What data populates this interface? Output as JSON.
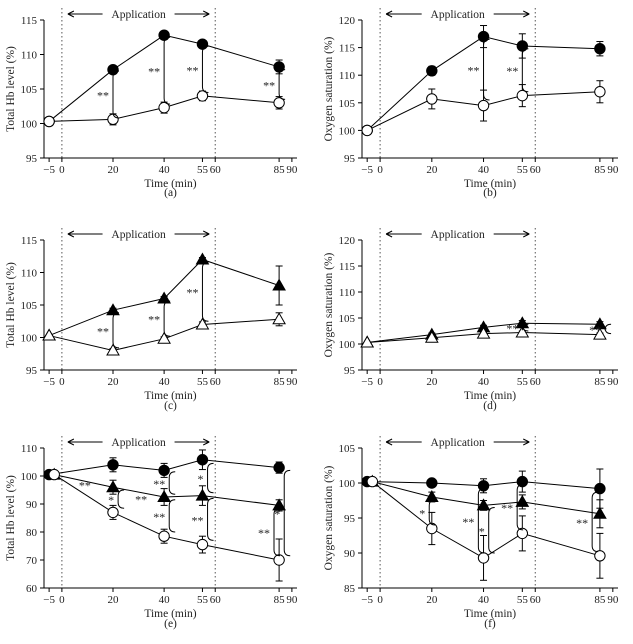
{
  "figure": {
    "application_label": "Application",
    "time_label": "Time (min)",
    "sig_double": "**",
    "sig_single": "*"
  },
  "chart_data": [
    {
      "id": "a",
      "panel_label": "(a)",
      "type": "line",
      "ylabel": "Total Hb level (%)",
      "xlabel": "Time (min)",
      "ylim": [
        95,
        115
      ],
      "yticks": [
        95,
        100,
        105,
        110,
        115
      ],
      "xticks": [
        -5,
        0,
        20,
        40,
        55,
        60,
        85,
        90
      ],
      "application": [
        0,
        60
      ],
      "series": [
        {
          "name": "filled-circle",
          "marker": "circle",
          "fill": "#000",
          "x": [
            -5,
            20,
            40,
            55,
            85
          ],
          "y": [
            100.3,
            107.8,
            112.8,
            111.5,
            108.2
          ],
          "err": [
            0,
            0.5,
            0.6,
            0.4,
            1.0
          ]
        },
        {
          "name": "open-circle",
          "marker": "circle",
          "fill": "#fff",
          "x": [
            -5,
            20,
            40,
            55,
            85
          ],
          "y": [
            100.3,
            100.6,
            102.3,
            104.0,
            103.0
          ],
          "err": [
            0,
            0.8,
            0.8,
            0.7,
            0.9
          ]
        }
      ],
      "brackets": [
        {
          "x": 20,
          "y1": 100.8,
          "y2": 107.6,
          "label": "**"
        },
        {
          "x": 40,
          "y1": 102.8,
          "y2": 112.5,
          "label": "**"
        },
        {
          "x": 55,
          "y1": 104.5,
          "y2": 111.2,
          "label": "**"
        },
        {
          "x": 85,
          "y1": 103.5,
          "y2": 107.8,
          "label": "**"
        }
      ]
    },
    {
      "id": "b",
      "panel_label": "(b)",
      "type": "line",
      "ylabel": "Oxygen saturation (%)",
      "xlabel": "Time (min)",
      "ylim": [
        95,
        120
      ],
      "yticks": [
        95,
        100,
        105,
        110,
        115,
        120
      ],
      "xticks": [
        -5,
        0,
        20,
        40,
        55,
        60,
        85,
        90
      ],
      "application": [
        0,
        60
      ],
      "series": [
        {
          "name": "filled-circle",
          "marker": "circle",
          "fill": "#000",
          "x": [
            -5,
            20,
            40,
            55,
            85
          ],
          "y": [
            100.0,
            110.8,
            117.0,
            115.3,
            114.8
          ],
          "err": [
            0,
            0.8,
            2.0,
            2.2,
            1.3
          ]
        },
        {
          "name": "open-circle",
          "marker": "circle",
          "fill": "#fff",
          "x": [
            -5,
            20,
            40,
            55,
            85
          ],
          "y": [
            100.0,
            105.7,
            104.5,
            106.3,
            107.0
          ],
          "err": [
            0,
            1.8,
            2.8,
            2.0,
            2.0
          ]
        }
      ],
      "brackets": [
        {
          "x": 40,
          "y1": 105.5,
          "y2": 116.5,
          "label": "**"
        },
        {
          "x": 55,
          "y1": 107.0,
          "y2": 114.8,
          "label": "**"
        }
      ]
    },
    {
      "id": "c",
      "panel_label": "(c)",
      "type": "line",
      "ylabel": "Total Hb level (%)",
      "xlabel": "Time (min)",
      "ylim": [
        95,
        115
      ],
      "yticks": [
        95,
        100,
        105,
        110,
        115
      ],
      "xticks": [
        -5,
        0,
        20,
        40,
        55,
        60,
        85,
        90
      ],
      "application": [
        0,
        60
      ],
      "series": [
        {
          "name": "filled-triangle",
          "marker": "triangle",
          "fill": "#000",
          "x": [
            -5,
            20,
            40,
            55,
            85
          ],
          "y": [
            100.3,
            104.2,
            106.0,
            112.0,
            108.0
          ],
          "err": [
            0,
            0.3,
            0.3,
            0.3,
            3.0
          ]
        },
        {
          "name": "open-triangle",
          "marker": "triangle",
          "fill": "#fff",
          "x": [
            -5,
            20,
            40,
            55,
            85
          ],
          "y": [
            100.3,
            98.0,
            99.8,
            102.0,
            102.8
          ],
          "err": [
            0,
            0.3,
            0.3,
            0.4,
            1.0
          ]
        }
      ],
      "brackets": [
        {
          "x": 20,
          "y1": 98.4,
          "y2": 103.8,
          "label": "**"
        },
        {
          "x": 40,
          "y1": 100.2,
          "y2": 105.6,
          "label": "**"
        },
        {
          "x": 55,
          "y1": 102.5,
          "y2": 111.6,
          "label": "**"
        }
      ]
    },
    {
      "id": "d",
      "panel_label": "(d)",
      "type": "line",
      "ylabel": "Oxygen saturation (%)",
      "xlabel": "Time (min)",
      "ylim": [
        95,
        120
      ],
      "yticks": [
        95,
        100,
        105,
        110,
        115,
        120
      ],
      "xticks": [
        -5,
        0,
        20,
        40,
        55,
        60,
        85,
        90
      ],
      "application": [
        0,
        60
      ],
      "series": [
        {
          "name": "filled-triangle",
          "marker": "triangle",
          "fill": "#000",
          "x": [
            -5,
            20,
            40,
            55,
            85
          ],
          "y": [
            100.3,
            101.8,
            103.2,
            104.0,
            103.8
          ],
          "err": [
            0,
            0.3,
            0.4,
            0.5,
            0.5
          ]
        },
        {
          "name": "open-triangle",
          "marker": "triangle",
          "fill": "#fff",
          "x": [
            -5,
            20,
            40,
            55,
            85
          ],
          "y": [
            100.3,
            101.2,
            102.0,
            102.2,
            101.8
          ],
          "err": [
            0,
            0.3,
            0.3,
            0.3,
            0.3
          ]
        }
      ],
      "brackets": [
        {
          "x": 55,
          "y1": 102.5,
          "y2": 103.8,
          "label": "**"
        },
        {
          "x": 87,
          "y1": 102.0,
          "y2": 103.8,
          "label": "**"
        }
      ]
    },
    {
      "id": "e",
      "panel_label": "(e)",
      "type": "line",
      "ylabel": "Total Hb level (%)",
      "xlabel": "Time (min)",
      "ylim": [
        60,
        110
      ],
      "yticks": [
        60,
        70,
        80,
        90,
        100,
        110
      ],
      "xticks": [
        -5,
        0,
        20,
        40,
        55,
        60,
        85,
        90
      ],
      "application": [
        0,
        60
      ],
      "series": [
        {
          "name": "filled-circle",
          "marker": "circle",
          "fill": "#000",
          "x": [
            -5,
            20,
            40,
            55,
            85
          ],
          "y": [
            100.5,
            104.0,
            102.0,
            105.8,
            103.0
          ],
          "err": [
            0,
            2.5,
            2.5,
            3.5,
            2.0
          ]
        },
        {
          "name": "filled-triangle",
          "marker": "triangle",
          "fill": "#000",
          "x": [
            -3,
            20,
            40,
            55,
            85
          ],
          "y": [
            100.5,
            96.0,
            92.5,
            93.0,
            89.5
          ],
          "err": [
            0,
            2.5,
            3.0,
            3.5,
            2.0
          ]
        },
        {
          "name": "open-circle",
          "marker": "circle",
          "fill": "#fff",
          "x": [
            -3,
            20,
            40,
            55,
            85
          ],
          "y": [
            100.5,
            87.0,
            78.5,
            75.5,
            70.0
          ],
          "err": [
            0,
            2.5,
            2.5,
            3.0,
            7.5
          ]
        }
      ],
      "brackets": [
        {
          "x": 22,
          "y1": 88.5,
          "y2": 95.0,
          "label": "*"
        },
        {
          "x": 42,
          "y1": 93.5,
          "y2": 101.5,
          "label": "**"
        },
        {
          "x": 42,
          "y1": 80.0,
          "y2": 91.5,
          "label": "**"
        },
        {
          "x": 57,
          "y1": 94.0,
          "y2": 104.5,
          "label": "*"
        },
        {
          "x": 57,
          "y1": 77.0,
          "y2": 92.0,
          "label": "**"
        },
        {
          "x": 83,
          "y1": 71.5,
          "y2": 88.5,
          "label": "**"
        },
        {
          "x": 87,
          "y1": 71.5,
          "y2": 102.0,
          "label": "*"
        }
      ],
      "free_labels": [
        {
          "x": 9,
          "y": 97.0,
          "label": "**"
        },
        {
          "x": 31,
          "y": 92.0,
          "label": "**"
        }
      ]
    },
    {
      "id": "f",
      "panel_label": "(f)",
      "type": "line",
      "ylabel": "Oxygen saturation (%)",
      "xlabel": "Time (min)",
      "ylim": [
        85,
        105
      ],
      "yticks": [
        85,
        90,
        95,
        100,
        105
      ],
      "xticks": [
        -5,
        0,
        20,
        40,
        55,
        60,
        85,
        90
      ],
      "application": [
        0,
        60
      ],
      "series": [
        {
          "name": "filled-circle",
          "marker": "circle",
          "fill": "#000",
          "x": [
            -5,
            20,
            40,
            55,
            85
          ],
          "y": [
            100.2,
            100.0,
            99.6,
            100.2,
            99.2
          ],
          "err": [
            0,
            0.5,
            1.0,
            1.5,
            2.8
          ]
        },
        {
          "name": "filled-triangle",
          "marker": "triangle",
          "fill": "#000",
          "x": [
            -3,
            20,
            40,
            55,
            85
          ],
          "y": [
            100.2,
            98.0,
            96.8,
            97.3,
            95.6
          ],
          "err": [
            0,
            0.7,
            0.7,
            1.0,
            2.0
          ]
        },
        {
          "name": "open-circle",
          "marker": "circle",
          "fill": "#fff",
          "x": [
            -3,
            20,
            40,
            55,
            85
          ],
          "y": [
            100.2,
            93.5,
            89.3,
            92.8,
            89.6
          ],
          "err": [
            0,
            2.3,
            3.2,
            2.5,
            3.2
          ]
        }
      ],
      "brackets": [
        {
          "x": 19,
          "y1": 94.0,
          "y2": 97.6,
          "label": "*"
        },
        {
          "x": 38,
          "y1": 90.0,
          "y2": 99.2,
          "label": "**"
        },
        {
          "x": 42,
          "y1": 90.0,
          "y2": 96.5,
          "label": "*"
        },
        {
          "x": 53,
          "y1": 93.3,
          "y2": 99.8,
          "label": "**"
        },
        {
          "x": 82,
          "y1": 90.2,
          "y2": 98.7,
          "label": "**"
        }
      ]
    }
  ]
}
